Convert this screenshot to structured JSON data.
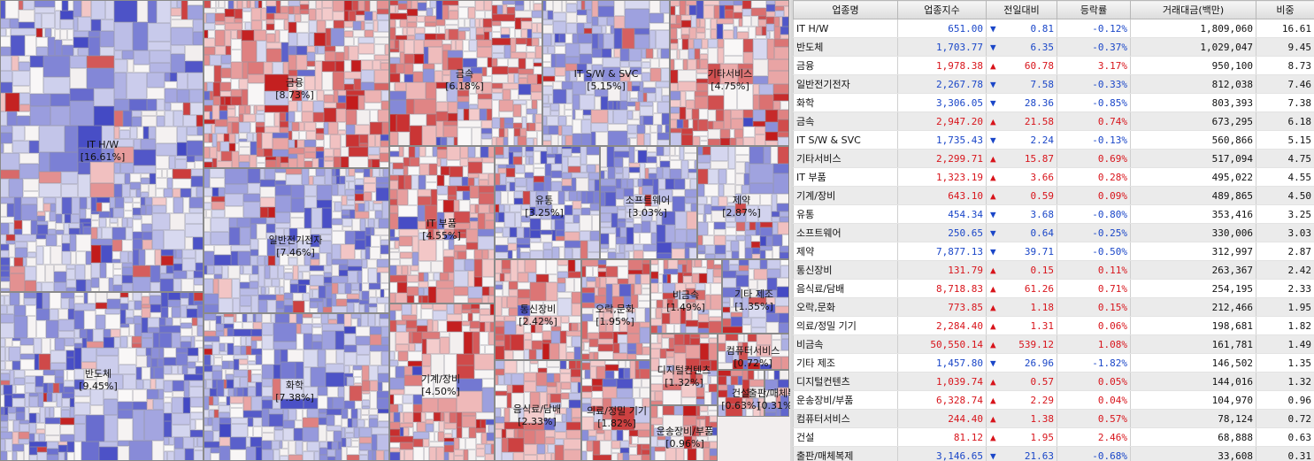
{
  "colors": {
    "rise_strong": "#c21a1a",
    "rise_light": "#f4cccc",
    "fall_strong": "#4349c4",
    "fall_light": "#d9daf0",
    "neutral": "#f2eeee",
    "up_text": "#d8141b",
    "down_text": "#1a46c8"
  },
  "treemap": {
    "sectors": [
      {
        "name": "IT H/W",
        "weight": "[16.61%]"
      },
      {
        "name": "반도체",
        "weight": "[9.45%]"
      },
      {
        "name": "금융",
        "weight": "[8.73%]"
      },
      {
        "name": "일반전기전자",
        "weight": "[7.46%]"
      },
      {
        "name": "화학",
        "weight": "[7.38%]"
      },
      {
        "name": "금속",
        "weight": "[6.18%]"
      },
      {
        "name": "IT S/W & SVC",
        "weight": "[5.15%]"
      },
      {
        "name": "기타서비스",
        "weight": "[4.75%]"
      },
      {
        "name": "IT 부품",
        "weight": "[4.55%]"
      },
      {
        "name": "기계/장비",
        "weight": "[4.50%]"
      },
      {
        "name": "유통",
        "weight": "[3.25%]"
      },
      {
        "name": "소프트웨어",
        "weight": "[3.03%]"
      },
      {
        "name": "제약",
        "weight": "[2.87%]"
      },
      {
        "name": "통신장비",
        "weight": "[2.42%]"
      },
      {
        "name": "음식료/담배",
        "weight": "[2.33%]"
      },
      {
        "name": "오락,문화",
        "weight": "[1.95%]"
      },
      {
        "name": "의료/정밀 기기",
        "weight": "[1.82%]"
      },
      {
        "name": "비금속",
        "weight": "[1.49%]"
      },
      {
        "name": "기타 제조",
        "weight": "[1.35%]"
      },
      {
        "name": "디지털컨텐츠",
        "weight": "[1.32%]"
      },
      {
        "name": "운송장비/부품",
        "weight": "[0.96%]"
      },
      {
        "name": "컴퓨터서비스",
        "weight": "[0.72%]"
      },
      {
        "name": "건설",
        "weight": "[0.63%]"
      },
      {
        "name": "출판/매체복제",
        "weight": "[0.31%]"
      }
    ]
  },
  "table": {
    "headers": [
      "업종명",
      "업종지수",
      "전일대비",
      "등락률",
      "거래대금(백만)",
      "비중"
    ],
    "rows": [
      {
        "name": "IT H/W",
        "index": "651.00",
        "dir": "down",
        "diff": "0.81",
        "rate": "-0.12%",
        "amount": "1,809,060",
        "weight": "16.61"
      },
      {
        "name": "반도체",
        "index": "1,703.77",
        "dir": "down",
        "diff": "6.35",
        "rate": "-0.37%",
        "amount": "1,029,047",
        "weight": "9.45"
      },
      {
        "name": "금융",
        "index": "1,978.38",
        "dir": "up",
        "diff": "60.78",
        "rate": "3.17%",
        "amount": "950,100",
        "weight": "8.73"
      },
      {
        "name": "일반전기전자",
        "index": "2,267.78",
        "dir": "down",
        "diff": "7.58",
        "rate": "-0.33%",
        "amount": "812,038",
        "weight": "7.46"
      },
      {
        "name": "화학",
        "index": "3,306.05",
        "dir": "down",
        "diff": "28.36",
        "rate": "-0.85%",
        "amount": "803,393",
        "weight": "7.38"
      },
      {
        "name": "금속",
        "index": "2,947.20",
        "dir": "up",
        "diff": "21.58",
        "rate": "0.74%",
        "amount": "673,295",
        "weight": "6.18"
      },
      {
        "name": "IT S/W & SVC",
        "index": "1,735.43",
        "dir": "down",
        "diff": "2.24",
        "rate": "-0.13%",
        "amount": "560,866",
        "weight": "5.15"
      },
      {
        "name": "기타서비스",
        "index": "2,299.71",
        "dir": "up",
        "diff": "15.87",
        "rate": "0.69%",
        "amount": "517,094",
        "weight": "4.75"
      },
      {
        "name": "IT 부품",
        "index": "1,323.19",
        "dir": "up",
        "diff": "3.66",
        "rate": "0.28%",
        "amount": "495,022",
        "weight": "4.55"
      },
      {
        "name": "기계/장비",
        "index": "643.10",
        "dir": "up",
        "diff": "0.59",
        "rate": "0.09%",
        "amount": "489,865",
        "weight": "4.50"
      },
      {
        "name": "유통",
        "index": "454.34",
        "dir": "down",
        "diff": "3.68",
        "rate": "-0.80%",
        "amount": "353,416",
        "weight": "3.25"
      },
      {
        "name": "소프트웨어",
        "index": "250.65",
        "dir": "down",
        "diff": "0.64",
        "rate": "-0.25%",
        "amount": "330,006",
        "weight": "3.03"
      },
      {
        "name": "제약",
        "index": "7,877.13",
        "dir": "down",
        "diff": "39.71",
        "rate": "-0.50%",
        "amount": "312,997",
        "weight": "2.87"
      },
      {
        "name": "통신장비",
        "index": "131.79",
        "dir": "up",
        "diff": "0.15",
        "rate": "0.11%",
        "amount": "263,367",
        "weight": "2.42"
      },
      {
        "name": "음식료/담배",
        "index": "8,718.83",
        "dir": "up",
        "diff": "61.26",
        "rate": "0.71%",
        "amount": "254,195",
        "weight": "2.33"
      },
      {
        "name": "오락,문화",
        "index": "773.85",
        "dir": "up",
        "diff": "1.18",
        "rate": "0.15%",
        "amount": "212,466",
        "weight": "1.95"
      },
      {
        "name": "의료/정밀 기기",
        "index": "2,284.40",
        "dir": "up",
        "diff": "1.31",
        "rate": "0.06%",
        "amount": "198,681",
        "weight": "1.82"
      },
      {
        "name": "비금속",
        "index": "50,550.14",
        "dir": "up",
        "diff": "539.12",
        "rate": "1.08%",
        "amount": "161,781",
        "weight": "1.49"
      },
      {
        "name": "기타 제조",
        "index": "1,457.80",
        "dir": "down",
        "diff": "26.96",
        "rate": "-1.82%",
        "amount": "146,502",
        "weight": "1.35"
      },
      {
        "name": "디지털컨텐츠",
        "index": "1,039.74",
        "dir": "up",
        "diff": "0.57",
        "rate": "0.05%",
        "amount": "144,016",
        "weight": "1.32"
      },
      {
        "name": "운송장비/부품",
        "index": "6,328.74",
        "dir": "up",
        "diff": "2.29",
        "rate": "0.04%",
        "amount": "104,970",
        "weight": "0.96"
      },
      {
        "name": "컴퓨터서비스",
        "index": "244.40",
        "dir": "up",
        "diff": "1.38",
        "rate": "0.57%",
        "amount": "78,124",
        "weight": "0.72"
      },
      {
        "name": "건설",
        "index": "81.12",
        "dir": "up",
        "diff": "1.95",
        "rate": "2.46%",
        "amount": "68,888",
        "weight": "0.63"
      },
      {
        "name": "출판/매체복제",
        "index": "3,146.65",
        "dir": "down",
        "diff": "21.63",
        "rate": "-0.68%",
        "amount": "33,608",
        "weight": "0.31"
      }
    ]
  }
}
